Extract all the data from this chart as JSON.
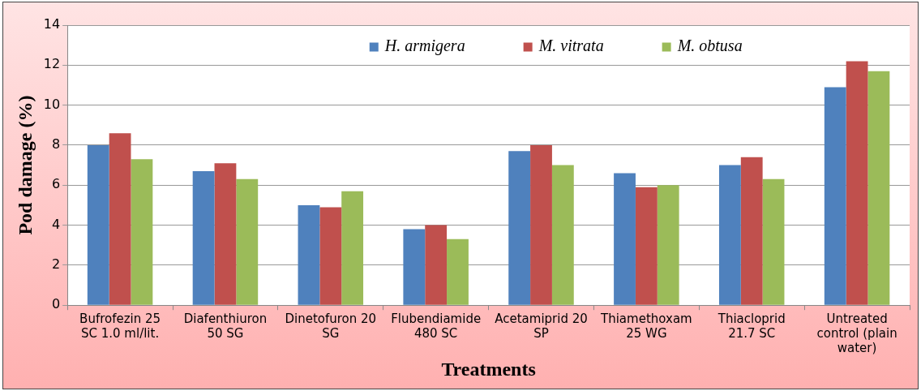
{
  "chart_data": {
    "type": "bar",
    "xlabel": "Treatments",
    "ylabel": "Pod damage (%)",
    "categories": [
      "Bufrofezin 25 SC 1.0 ml/lit.",
      "Diafenthiuron 50 SG",
      "Dinetofuron 20 SG",
      "Flubendiamide 480 SC",
      "Acetamiprid 20 SP",
      "Thiamethoxam 25 WG",
      "Thiacloprid 21.7 SC",
      "Untreated control (plain water)"
    ],
    "series": [
      {
        "name": "H. armigera",
        "color": "#4f81bd",
        "values": [
          8.0,
          6.7,
          5.0,
          3.8,
          7.7,
          6.6,
          7.0,
          10.9
        ]
      },
      {
        "name": "M. vitrata",
        "color": "#c0504d",
        "values": [
          8.6,
          7.1,
          4.9,
          4.0,
          8.0,
          5.9,
          7.4,
          12.2
        ]
      },
      {
        "name": "M. obtusa",
        "color": "#9bbb59",
        "values": [
          7.3,
          6.3,
          5.7,
          3.3,
          7.0,
          6.0,
          6.3,
          11.7
        ]
      }
    ],
    "ylim": [
      0,
      14
    ],
    "yticks": [
      0,
      2,
      4,
      6,
      8,
      10,
      12,
      14
    ],
    "grid": "y",
    "legend": "top"
  }
}
